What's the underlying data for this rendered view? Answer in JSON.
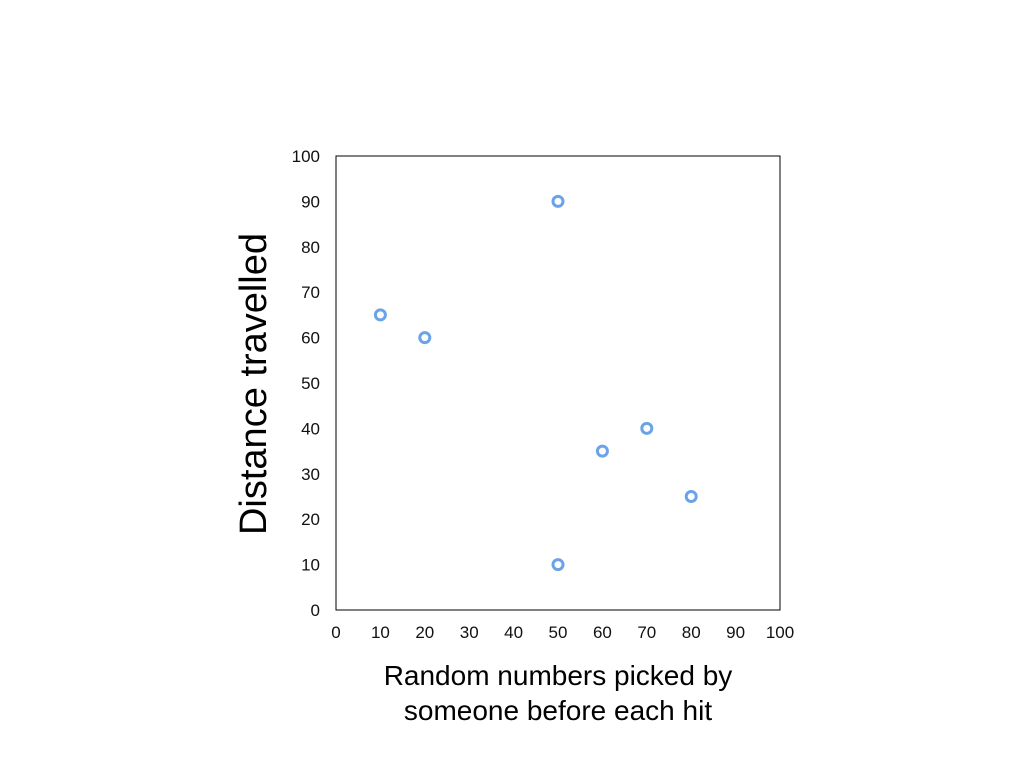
{
  "chart_data": {
    "type": "scatter",
    "title": "",
    "xlabel_lines": [
      "Random numbers picked by",
      "someone before each hit"
    ],
    "ylabel": "Distance travelled",
    "xlim": [
      0,
      100
    ],
    "ylim": [
      0,
      100
    ],
    "x_ticks": [
      "0",
      "10",
      "20",
      "30",
      "40",
      "50",
      "60",
      "70",
      "80",
      "90",
      "100"
    ],
    "y_ticks": [
      "0",
      "10",
      "20",
      "30",
      "40",
      "50",
      "60",
      "70",
      "80",
      "90",
      "100"
    ],
    "grid": false,
    "legend": "none",
    "marker": "hollow-circle",
    "series": [
      {
        "color": "#6aa3e8",
        "points": [
          {
            "x": 10,
            "y": 65
          },
          {
            "x": 20,
            "y": 60
          },
          {
            "x": 50,
            "y": 90
          },
          {
            "x": 50,
            "y": 10
          },
          {
            "x": 60,
            "y": 35
          },
          {
            "x": 70,
            "y": 40
          },
          {
            "x": 80,
            "y": 25
          }
        ]
      }
    ]
  }
}
